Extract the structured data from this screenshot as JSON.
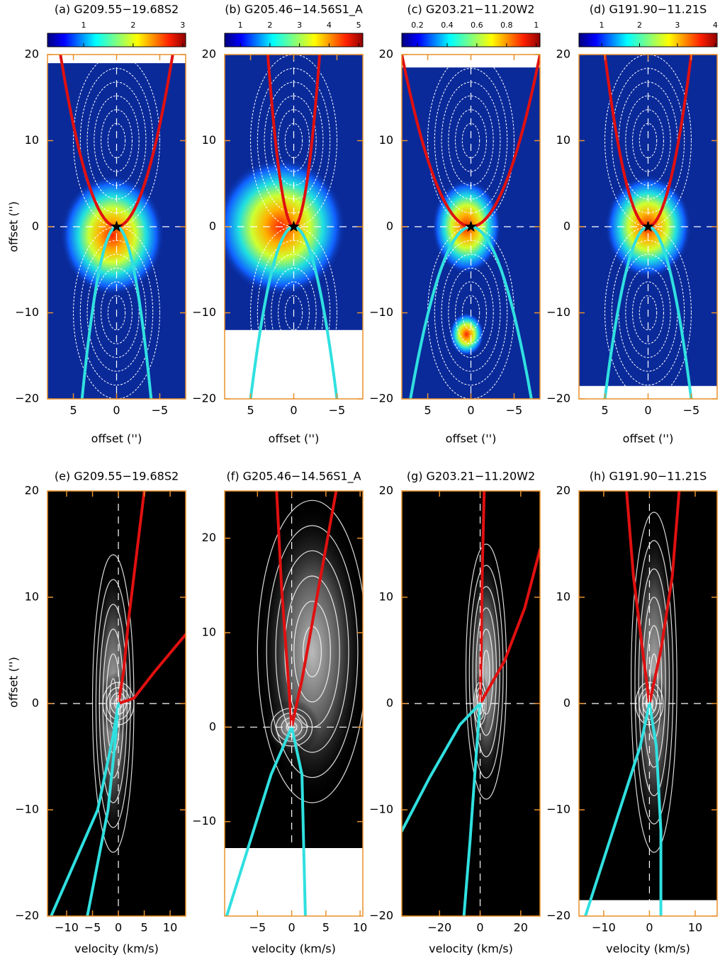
{
  "chart_data": [
    {
      "type": "heatmap",
      "colormap": "jet",
      "title": "(a) G209.55−19.68S2",
      "xlabel": "offset ('')",
      "ylabel": "offset ('')",
      "xlim": [
        8,
        -8
      ],
      "ylim": [
        -20,
        20
      ],
      "xticks": [
        5,
        0,
        {
          "value": -5,
          "label": "−5"
        }
      ],
      "yticks": [
        {
          "value": -20,
          "label": "−20"
        },
        {
          "value": -10,
          "label": "−10"
        },
        0,
        10,
        20
      ],
      "clim": [
        0.27,
        3.06
      ],
      "cticks": [
        1,
        2,
        3
      ]
    },
    {
      "type": "heatmap",
      "colormap": "jet",
      "title": "(b) G205.46−14.56S1_A",
      "xlabel": "offset ('')",
      "xlim": [
        8,
        -8
      ],
      "ylim": [
        -20,
        20
      ],
      "xticks": [
        5,
        0,
        {
          "value": -5,
          "label": "−5"
        }
      ],
      "yticks": [
        {
          "value": -20,
          "label": "−20"
        },
        {
          "value": -10,
          "label": "−10"
        },
        0,
        10,
        20
      ],
      "clim": [
        0.47,
        5.14
      ],
      "cticks": [
        1,
        2,
        3,
        4,
        5
      ]
    },
    {
      "type": "heatmap",
      "colormap": "jet",
      "title": "(c) G203.21−11.20W2",
      "xlabel": "offset ('')",
      "xlim": [
        8,
        -8
      ],
      "ylim": [
        -20,
        20
      ],
      "xticks": [
        5,
        0,
        {
          "value": -5,
          "label": "−5"
        }
      ],
      "yticks": [
        {
          "value": -20,
          "label": "−20"
        },
        {
          "value": -10,
          "label": "−10"
        },
        0,
        10,
        20
      ],
      "clim": [
        0.095,
        1.025
      ],
      "cticks": [
        0.2,
        0.4,
        0.6,
        0.8,
        1
      ]
    },
    {
      "type": "heatmap",
      "colormap": "jet",
      "title": "(d) G191.90−11.21S",
      "xlabel": "offset ('')",
      "xlim": [
        8,
        -8
      ],
      "ylim": [
        -20,
        20
      ],
      "xticks": [
        5,
        0,
        {
          "value": -5,
          "label": "−5"
        }
      ],
      "yticks": [
        {
          "value": -20,
          "label": "−20"
        },
        {
          "value": -10,
          "label": "−10"
        },
        0,
        10,
        20
      ],
      "clim": [
        0.4,
        4.05
      ],
      "cticks": [
        1,
        2,
        3,
        4
      ]
    },
    {
      "type": "heatmap",
      "colormap": "gray",
      "title": "(e) G209.55−19.68S2",
      "xlabel": "velocity (km/s)",
      "ylabel": "offset ('')",
      "xlim": [
        -13.7,
        13
      ],
      "ylim": [
        -20,
        20
      ],
      "xticks": [
        {
          "value": -10,
          "label": "−10"
        },
        {
          "value": -5,
          "label": "−5"
        },
        0,
        5,
        10
      ],
      "yticks": [
        {
          "value": -20,
          "label": "−20"
        },
        {
          "value": -10,
          "label": "−10"
        },
        0,
        10,
        20
      ]
    },
    {
      "type": "heatmap",
      "colormap": "gray",
      "title": "(f) G205.46−14.56S1_A",
      "xlabel": "velocity (km/s)",
      "xlim": [
        -9.8,
        10.4
      ],
      "ylim": [
        -20,
        25
      ],
      "xticks": [
        {
          "value": -5,
          "label": "−5"
        },
        0,
        5,
        10
      ],
      "yticks": [
        {
          "value": -10,
          "label": "−10"
        },
        0,
        10,
        20
      ]
    },
    {
      "type": "heatmap",
      "colormap": "gray",
      "title": "(g) G203.21−11.20W2",
      "xlabel": "velocity (km/s)",
      "xlim": [
        -38.6,
        29.5
      ],
      "ylim": [
        -20,
        20
      ],
      "xticks": [
        {
          "value": -20,
          "label": "−20"
        },
        0,
        20
      ],
      "yticks": [
        {
          "value": -20,
          "label": "−20"
        },
        {
          "value": -10,
          "label": "−10"
        },
        0,
        10,
        20
      ]
    },
    {
      "type": "heatmap",
      "colormap": "gray",
      "title": "(h) G191.90−11.21S",
      "xlabel": "velocity (km/s)",
      "xlim": [
        -15.4,
        14.8
      ],
      "ylim": [
        -20,
        20
      ],
      "xticks": [
        {
          "value": -10,
          "label": "−10"
        },
        0,
        10
      ],
      "yticks": [
        {
          "value": -20,
          "label": "−20"
        },
        {
          "value": -10,
          "label": "−10"
        },
        0,
        10,
        20
      ]
    }
  ]
}
